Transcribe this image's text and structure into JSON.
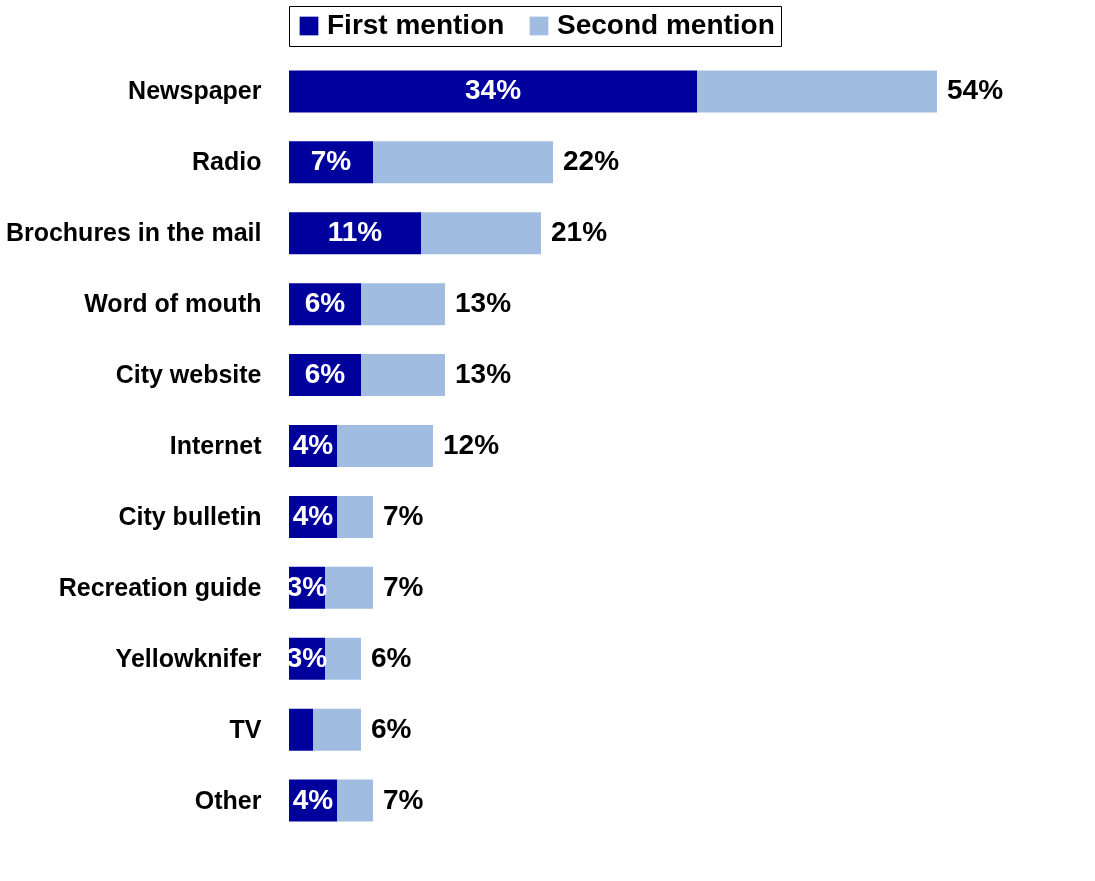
{
  "chart_data": {
    "type": "bar",
    "orientation": "horizontal",
    "stacked": true,
    "legend": "top",
    "tick_labels": "y",
    "grid": false,
    "categories": [
      "Newspaper",
      "Radio",
      "Brochures in the mail",
      "Word of mouth",
      "City website",
      "Internet",
      "City bulletin",
      "Recreation guide",
      "Yellowknifer",
      "TV",
      "Other"
    ],
    "series": [
      {
        "name": "First mention",
        "color": "#00009c",
        "values": [
          34,
          7,
          11,
          6,
          6,
          4,
          4,
          3,
          3,
          2,
          4
        ],
        "value_labels": [
          "34%",
          "7%",
          "11%",
          "6%",
          "6%",
          "4%",
          "4%",
          "3%",
          "3%",
          null,
          "4%"
        ]
      },
      {
        "name": "Second mention",
        "color": "#a0bce0",
        "values": [
          20,
          15,
          10,
          7,
          7,
          8,
          3,
          4,
          3,
          4,
          3
        ]
      }
    ],
    "totals": [
      "54%",
      "22%",
      "21%",
      "13%",
      "13%",
      "12%",
      "7%",
      "7%",
      "6%",
      "6%",
      "7%"
    ]
  }
}
